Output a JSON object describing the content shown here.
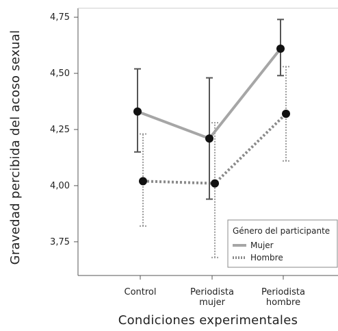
{
  "chart_data": {
    "type": "line",
    "title": "",
    "xlabel": "Condiciones experimentales",
    "ylabel": "Gravedad percibida del acoso sexual",
    "categories": [
      [
        "Control"
      ],
      [
        "Periodista",
        "mujer"
      ],
      [
        "Periodista",
        "hombre"
      ]
    ],
    "ylim": [
      3.6,
      4.79
    ],
    "yticks": [
      3.75,
      4.0,
      4.25,
      4.5,
      4.75
    ],
    "ytick_labels": [
      "3,75",
      "4,00",
      "4,25",
      "4,50",
      "4,75"
    ],
    "grid": false,
    "legend": {
      "title": "Género del participante",
      "position": "bottom-right"
    },
    "series": [
      {
        "name": "Mujer",
        "values": [
          4.33,
          4.21,
          4.61
        ],
        "err_low": [
          4.15,
          3.94,
          4.49
        ],
        "err_high": [
          4.52,
          4.48,
          4.74
        ],
        "line_color": "#a6a6a6",
        "error_color": "#555555",
        "style": "solid"
      },
      {
        "name": "Hombre",
        "values": [
          4.02,
          4.01,
          4.32
        ],
        "err_low": [
          3.82,
          3.68,
          4.11
        ],
        "err_high": [
          4.23,
          4.28,
          4.53
        ],
        "line_color": "#8a8a8a",
        "error_color": "#999999",
        "style": "dotted"
      }
    ],
    "marker_color": "#111111"
  }
}
